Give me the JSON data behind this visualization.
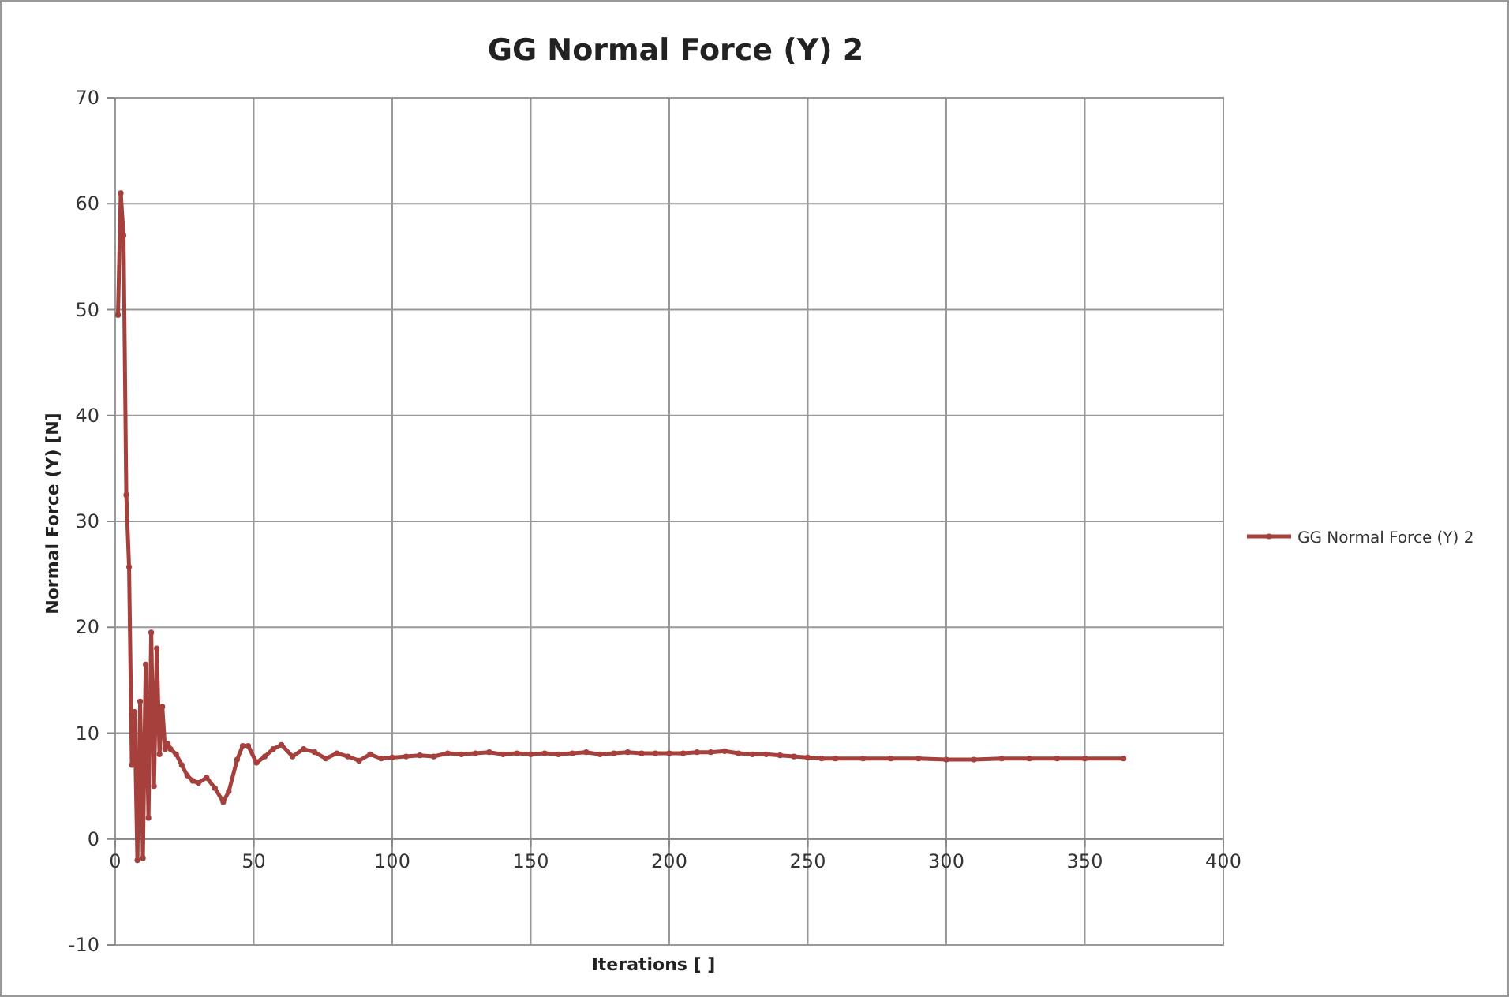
{
  "chart_data": {
    "type": "line",
    "title": "GG Normal Force (Y) 2",
    "xlabel": "Iterations [ ]",
    "ylabel": "Normal Force (Y) [N]",
    "xlim": [
      0,
      400
    ],
    "xticks": [
      0,
      50,
      100,
      150,
      200,
      250,
      300,
      350,
      400
    ],
    "ylim": [
      -10,
      70
    ],
    "yticks": [
      -10,
      0,
      10,
      20,
      30,
      40,
      50,
      60,
      70
    ],
    "grid": true,
    "legend": "right",
    "marker": "circle",
    "line_style": "solid",
    "series": [
      {
        "name": "GG Normal Force (Y) 2",
        "color": "#a5403c",
        "x": [
          1,
          2,
          3,
          4,
          5,
          6,
          7,
          8,
          9,
          10,
          11,
          12,
          13,
          14,
          15,
          16,
          17,
          18,
          19,
          20,
          22,
          24,
          26,
          28,
          30,
          33,
          36,
          39,
          41,
          44,
          46,
          48,
          51,
          54,
          57,
          60,
          64,
          68,
          72,
          76,
          80,
          84,
          88,
          92,
          96,
          100,
          105,
          110,
          115,
          120,
          125,
          130,
          135,
          140,
          145,
          150,
          155,
          160,
          165,
          170,
          175,
          180,
          185,
          190,
          195,
          200,
          205,
          210,
          215,
          220,
          225,
          230,
          235,
          240,
          245,
          250,
          255,
          260,
          270,
          280,
          290,
          300,
          310,
          320,
          330,
          340,
          350,
          364
        ],
        "values": [
          49.5,
          61,
          57,
          32.5,
          25.7,
          7,
          12,
          -2,
          13,
          -1.8,
          16.5,
          2,
          19.5,
          5,
          18,
          8,
          12.5,
          8.5,
          9,
          8.5,
          8,
          7,
          6,
          5.5,
          5.3,
          5.8,
          4.8,
          3.5,
          4.5,
          7.5,
          8.8,
          8.8,
          7.2,
          7.8,
          8.5,
          8.9,
          7.8,
          8.5,
          8.2,
          7.6,
          8.1,
          7.8,
          7.4,
          8,
          7.6,
          7.7,
          7.8,
          7.9,
          7.8,
          8.1,
          8,
          8.1,
          8.2,
          8,
          8.1,
          8,
          8.1,
          8,
          8.1,
          8.2,
          8,
          8.1,
          8.2,
          8.1,
          8.1,
          8.1,
          8.1,
          8.2,
          8.2,
          8.3,
          8.1,
          8,
          8,
          7.9,
          7.8,
          7.7,
          7.6,
          7.6,
          7.6,
          7.6,
          7.6,
          7.5,
          7.5,
          7.6,
          7.6,
          7.6,
          7.6,
          7.6
        ]
      }
    ]
  }
}
